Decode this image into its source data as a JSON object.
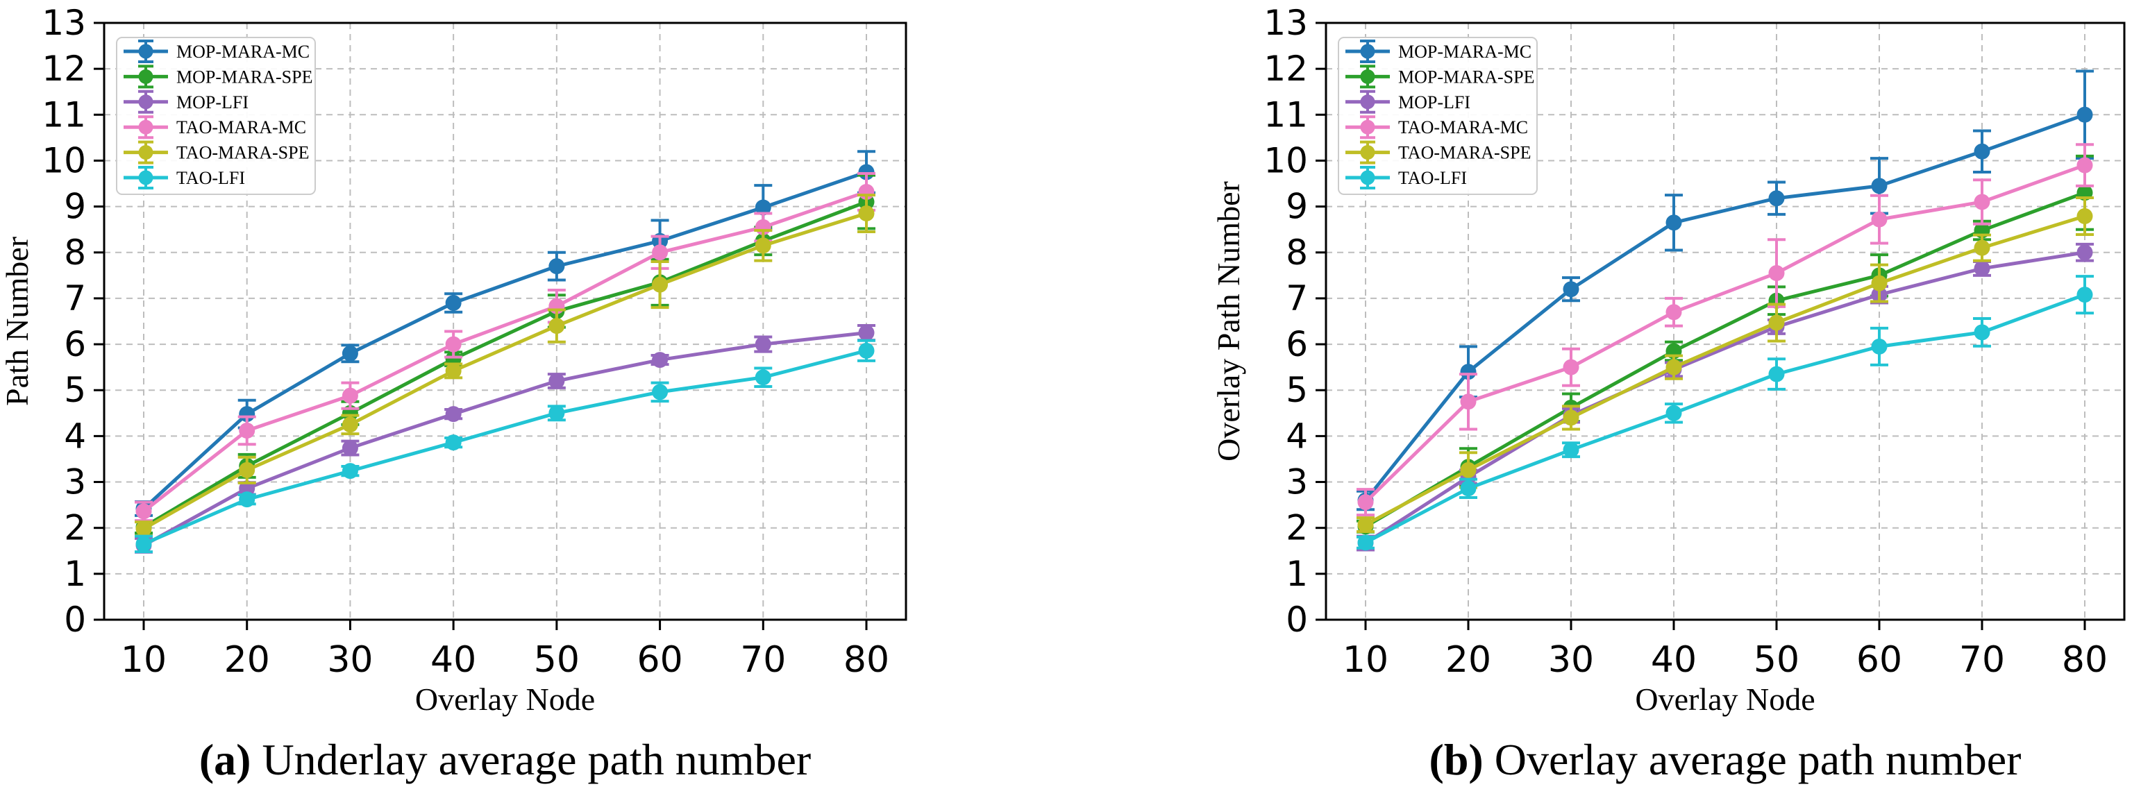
{
  "figure": {
    "background": "#ffffff",
    "captions": [
      {
        "prefix": "(a)",
        "text": " Underlay average path number"
      },
      {
        "prefix": "(b)",
        "text": " Overlay average path number"
      }
    ]
  },
  "chart_data": [
    {
      "type": "line",
      "panel": "a",
      "title": "",
      "xlabel": "Overlay Node",
      "ylabel": "Path Number",
      "x": [
        10,
        20,
        30,
        40,
        50,
        60,
        70,
        80
      ],
      "xticks": [
        "10",
        "20",
        "30",
        "40",
        "50",
        "60",
        "70",
        "80"
      ],
      "yticks": [
        "0",
        "1",
        "2",
        "3",
        "4",
        "5",
        "6",
        "7",
        "8",
        "9",
        "10",
        "11",
        "12",
        "13"
      ],
      "ylim": [
        0,
        13
      ],
      "grid": true,
      "legend_position": "upper left",
      "marker": "circle",
      "error_bars": true,
      "series": [
        {
          "name": "MOP-MARA-MC",
          "color": "#2278b5",
          "values": [
            2.42,
            4.48,
            5.8,
            6.9,
            7.7,
            8.25,
            8.98,
            9.75
          ],
          "errors": [
            0.15,
            0.3,
            0.18,
            0.2,
            0.3,
            0.45,
            0.48,
            0.45
          ]
        },
        {
          "name": "MOP-MARA-SPE",
          "color": "#2ca02c",
          "values": [
            2.02,
            3.35,
            4.5,
            5.68,
            6.72,
            7.35,
            8.25,
            9.1
          ],
          "errors": [
            0.13,
            0.25,
            0.25,
            0.15,
            0.35,
            0.5,
            0.3,
            0.58
          ]
        },
        {
          "name": "MOP-LFI",
          "color": "#9467bd",
          "values": [
            1.62,
            2.86,
            3.74,
            4.48,
            5.2,
            5.66,
            6.0,
            6.25
          ],
          "errors": [
            0.15,
            0.13,
            0.15,
            0.1,
            0.15,
            0.1,
            0.16,
            0.16
          ]
        },
        {
          "name": "TAO-MARA-MC",
          "color": "#ec7ec4",
          "values": [
            2.36,
            4.12,
            4.88,
            6.0,
            6.83,
            8.0,
            8.55,
            9.32
          ],
          "errors": [
            0.2,
            0.3,
            0.28,
            0.28,
            0.35,
            0.35,
            0.3,
            0.4
          ]
        },
        {
          "name": "TAO-MARA-SPE",
          "color": "#bfbe25",
          "values": [
            1.98,
            3.26,
            4.25,
            5.42,
            6.4,
            7.3,
            8.15,
            8.85
          ],
          "errors": [
            0.15,
            0.28,
            0.2,
            0.15,
            0.35,
            0.5,
            0.33,
            0.4
          ]
        },
        {
          "name": "TAO-LFI",
          "color": "#22c4d4",
          "values": [
            1.65,
            2.62,
            3.24,
            3.86,
            4.5,
            4.96,
            5.28,
            5.86
          ],
          "errors": [
            0.17,
            0.1,
            0.1,
            0.1,
            0.15,
            0.2,
            0.2,
            0.22
          ]
        }
      ]
    },
    {
      "type": "line",
      "panel": "b",
      "title": "",
      "xlabel": "Overlay Node",
      "ylabel": "Overlay Path Number",
      "x": [
        10,
        20,
        30,
        40,
        50,
        60,
        70,
        80
      ],
      "xticks": [
        "10",
        "20",
        "30",
        "40",
        "50",
        "60",
        "70",
        "80"
      ],
      "yticks": [
        "0",
        "1",
        "2",
        "3",
        "4",
        "5",
        "6",
        "7",
        "8",
        "9",
        "10",
        "11",
        "12",
        "13"
      ],
      "ylim": [
        0,
        13
      ],
      "grid": true,
      "legend_position": "upper left",
      "marker": "circle",
      "error_bars": true,
      "series": [
        {
          "name": "MOP-MARA-MC",
          "color": "#2278b5",
          "values": [
            2.6,
            5.4,
            7.2,
            8.65,
            9.18,
            9.45,
            10.2,
            11.0
          ],
          "errors": [
            0.2,
            0.55,
            0.25,
            0.6,
            0.35,
            0.6,
            0.45,
            0.95
          ]
        },
        {
          "name": "MOP-MARA-SPE",
          "color": "#2ca02c",
          "values": [
            2.03,
            3.33,
            4.62,
            5.85,
            6.95,
            7.5,
            8.48,
            9.3
          ],
          "errors": [
            0.12,
            0.4,
            0.3,
            0.2,
            0.3,
            0.45,
            0.2,
            0.8
          ]
        },
        {
          "name": "MOP-LFI",
          "color": "#9467bd",
          "values": [
            1.67,
            3.11,
            4.45,
            5.45,
            6.38,
            7.08,
            7.65,
            8.0
          ],
          "errors": [
            0.15,
            0.15,
            0.15,
            0.15,
            0.15,
            0.18,
            0.15,
            0.18
          ]
        },
        {
          "name": "TAO-MARA-MC",
          "color": "#ec7ec4",
          "values": [
            2.56,
            4.75,
            5.5,
            6.7,
            7.55,
            8.72,
            9.1,
            9.9
          ],
          "errors": [
            0.28,
            0.6,
            0.4,
            0.3,
            0.73,
            0.52,
            0.48,
            0.45
          ]
        },
        {
          "name": "TAO-MARA-SPE",
          "color": "#bfbe25",
          "values": [
            2.07,
            3.26,
            4.4,
            5.5,
            6.47,
            7.33,
            8.1,
            8.79
          ],
          "errors": [
            0.15,
            0.38,
            0.25,
            0.25,
            0.4,
            0.4,
            0.28,
            0.4
          ]
        },
        {
          "name": "TAO-LFI",
          "color": "#22c4d4",
          "values": [
            1.68,
            2.86,
            3.7,
            4.5,
            5.35,
            5.95,
            6.26,
            7.08
          ],
          "errors": [
            0.12,
            0.2,
            0.15,
            0.2,
            0.33,
            0.4,
            0.3,
            0.4
          ]
        }
      ]
    }
  ]
}
